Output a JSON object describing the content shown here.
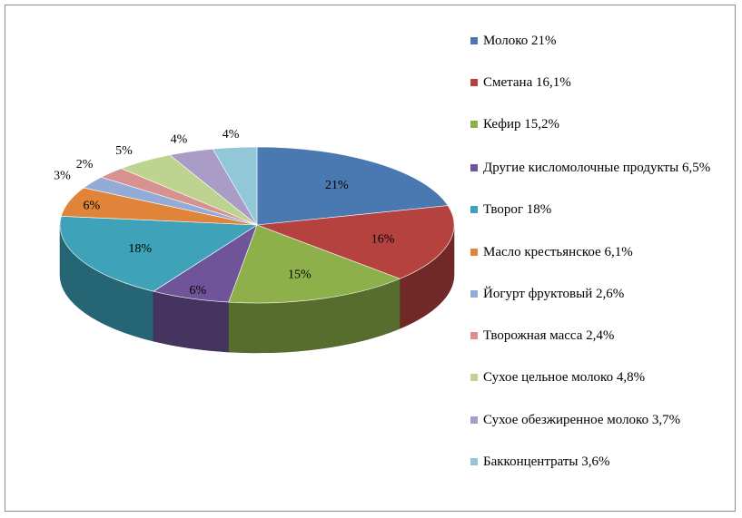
{
  "chart_data": {
    "type": "pie",
    "title": "",
    "legend_position": "right",
    "slices": [
      {
        "legend": "Молоко 21%",
        "value": 21,
        "label": "21%",
        "color": "#4a78b0"
      },
      {
        "legend": "Сметана 16,1%",
        "value": 16.1,
        "label": "16%",
        "color": "#b5423f"
      },
      {
        "legend": "Кефир 15,2%",
        "value": 15.2,
        "label": "15%",
        "color": "#8db04a"
      },
      {
        "legend": "Другие кисломолочные продукты 6,5%",
        "value": 6.5,
        "label": "6%",
        "color": "#70549a"
      },
      {
        "legend": "Творог 18%",
        "value": 18,
        "label": "18%",
        "color": "#3ea3b9"
      },
      {
        "legend": "Масло крестьянское 6,1%",
        "value": 6.1,
        "label": "6%",
        "color": "#e0843a"
      },
      {
        "legend": "Йогурт фруктовый 2,6%",
        "value": 2.6,
        "label": "3%",
        "color": "#93abd6"
      },
      {
        "legend": "Творожная масса 2,4%",
        "value": 2.4,
        "label": "2%",
        "color": "#d7918f"
      },
      {
        "legend": "Сухое цельное молоко 4,8%",
        "value": 4.8,
        "label": "5%",
        "color": "#bed38f"
      },
      {
        "legend": "Сухое обезжиренное молоко 3,7%",
        "value": 3.7,
        "label": "4%",
        "color": "#a99cc6"
      },
      {
        "legend": "Бакконцентраты 3,6%",
        "value": 3.6,
        "label": "4%",
        "color": "#92c7d8"
      }
    ]
  }
}
